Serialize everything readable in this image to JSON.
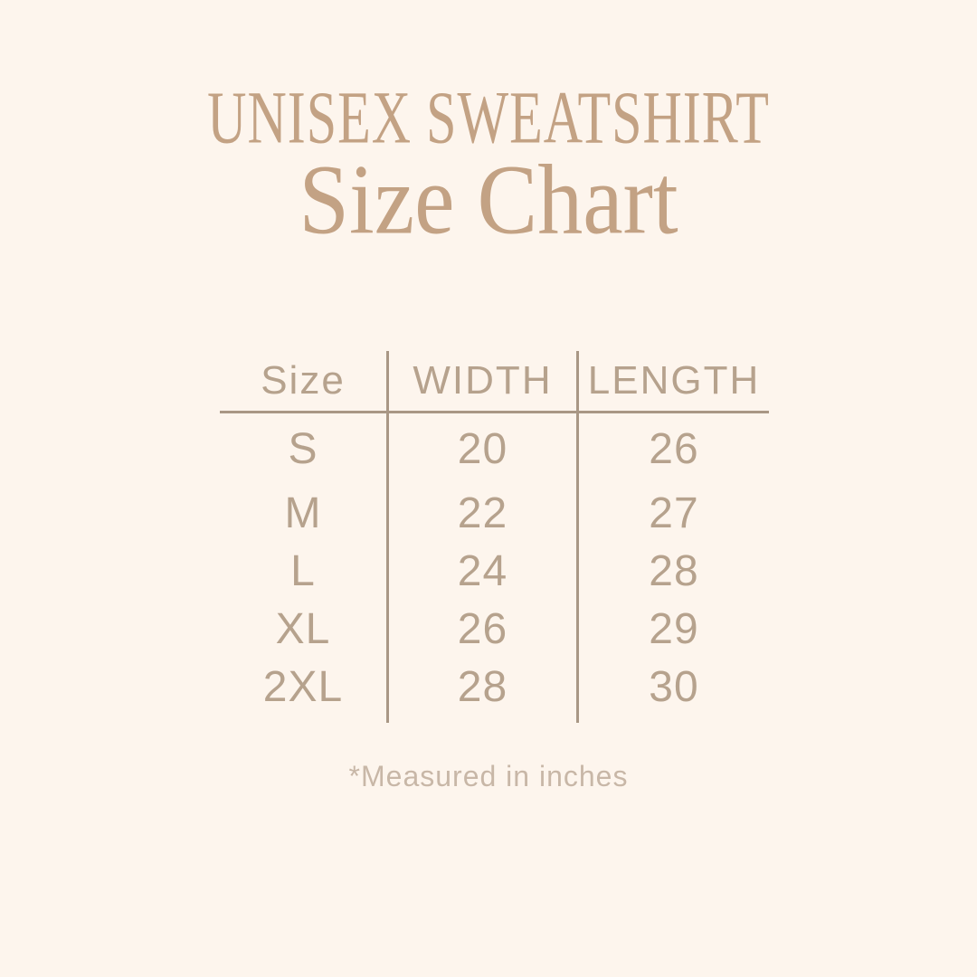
{
  "header": {
    "product_title": "UNISEX SWEATSHIRT",
    "page_title": "Size Chart"
  },
  "table": {
    "columns": {
      "size": "Size",
      "width": "WIDTH",
      "length": "LENGTH"
    },
    "rows": [
      {
        "size": "S",
        "width": "20",
        "length": "26"
      },
      {
        "size": "M",
        "width": "22",
        "length": "27"
      },
      {
        "size": "L",
        "width": "24",
        "length": "28"
      },
      {
        "size": "XL",
        "width": "26",
        "length": "29"
      },
      {
        "size": "2XL",
        "width": "28",
        "length": "30"
      }
    ]
  },
  "footnote": {
    "text": "*Measured in inches"
  },
  "colors": {
    "background": "#fdf5ed",
    "title": "#c3a284",
    "table_text": "#b6a28d",
    "rules": "#a99785",
    "footnote": "#c8b7a7"
  },
  "chart_data": {
    "type": "table",
    "title": "UNISEX SWEATSHIRT Size Chart",
    "columns": [
      "Size",
      "WIDTH",
      "LENGTH"
    ],
    "rows": [
      [
        "S",
        20,
        26
      ],
      [
        "M",
        22,
        27
      ],
      [
        "L",
        24,
        28
      ],
      [
        "XL",
        26,
        29
      ],
      [
        "2XL",
        28,
        30
      ]
    ],
    "units": "inches",
    "note": "*Measured in inches"
  }
}
